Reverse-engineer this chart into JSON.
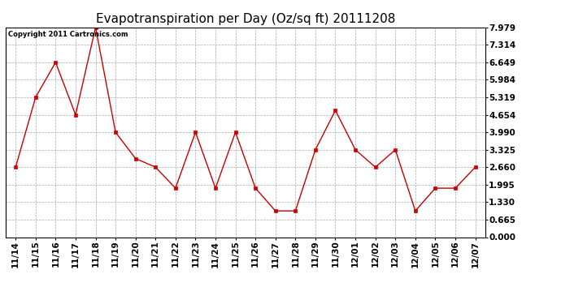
{
  "title": "Evapotranspiration per Day (Oz/sq ft) 20111208",
  "copyright_text": "Copyright 2011 Cartronics.com",
  "x_labels": [
    "11/14",
    "11/15",
    "11/16",
    "11/17",
    "11/18",
    "11/19",
    "11/20",
    "11/21",
    "11/22",
    "11/23",
    "11/24",
    "11/25",
    "11/26",
    "11/27",
    "11/28",
    "11/29",
    "11/30",
    "12/01",
    "12/02",
    "12/03",
    "12/04",
    "12/05",
    "12/06",
    "12/07"
  ],
  "y_values": [
    2.66,
    5.319,
    6.649,
    4.654,
    7.979,
    3.99,
    2.99,
    2.66,
    1.862,
    3.99,
    1.862,
    3.99,
    1.862,
    0.997,
    0.997,
    3.325,
    4.82,
    3.325,
    2.66,
    3.325,
    0.997,
    1.862,
    1.862,
    2.66
  ],
  "line_color": "#cc0000",
  "marker": "s",
  "marker_size": 3,
  "y_ticks": [
    0.0,
    0.665,
    1.33,
    1.995,
    2.66,
    3.325,
    3.99,
    4.654,
    5.319,
    5.984,
    6.649,
    7.314,
    7.979
  ],
  "y_min": 0.0,
  "y_max": 7.979,
  "bg_color": "#ffffff",
  "grid_color": "#aaaaaa",
  "title_fontsize": 11,
  "copyright_fontsize": 6,
  "tick_fontsize": 7.5
}
